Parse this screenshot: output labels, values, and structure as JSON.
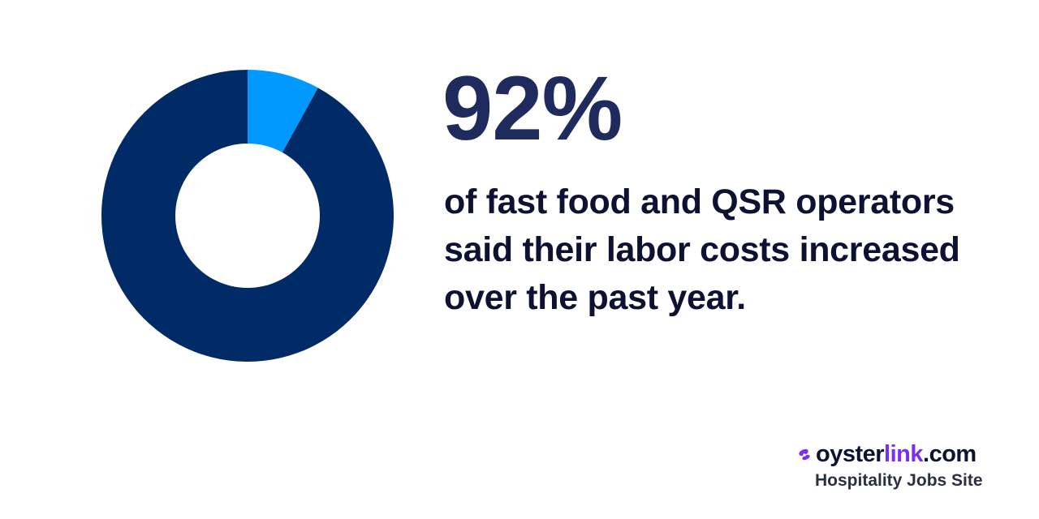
{
  "chart_data": {
    "type": "pie",
    "style": "donut",
    "slices": [
      {
        "value": 92,
        "color": "#002b66"
      },
      {
        "value": 8,
        "color": "#0099ff"
      }
    ]
  },
  "headline": "92%",
  "description": "of fast food and QSR operators said their labor costs increased over the past year.",
  "brand": {
    "name_part1": "oyster",
    "name_part2": "link",
    "name_part3": ".com",
    "tagline": "Hospitality Jobs Site",
    "mark_icon": "oyster-logo-icon",
    "accent_color": "#7a2ef2"
  }
}
